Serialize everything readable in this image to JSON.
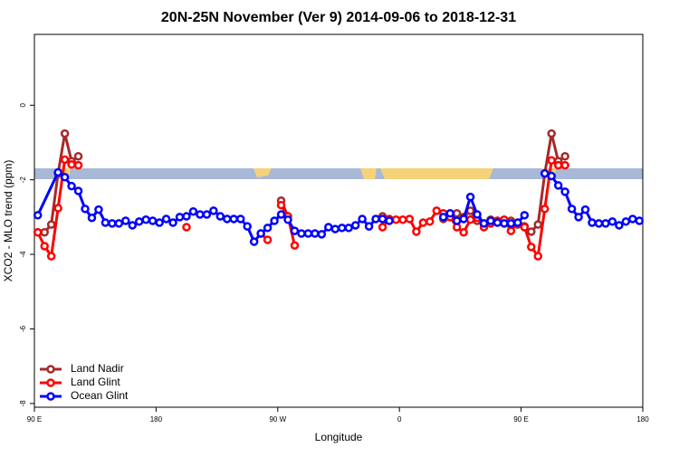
{
  "chart_data": {
    "type": "line",
    "title": "20N-25N November (Ver 9)   2014-09-06 to 2018-12-31",
    "xlabel": "Longitude",
    "ylabel": "XCO2 - MLO trend (ppm)",
    "xlim": [
      90,
      540
    ],
    "ylim": [
      -8.1,
      1.9
    ],
    "xticks": [
      {
        "value": 90,
        "label": "90 E"
      },
      180,
      {
        "value": 270,
        "label": "90 W"
      },
      {
        "value": 360,
        "label": "0"
      },
      {
        "value": 450,
        "label": "90 E"
      },
      {
        "value": 540,
        "label": "180"
      }
    ],
    "yticks": [
      -8,
      -6,
      -4,
      -2,
      0
    ],
    "legend": "bottom-left",
    "series": [
      {
        "name": "Land Nadir",
        "color": "#a52a2a",
        "x": [
          92.5,
          97.5,
          102.5,
          107.5,
          112.5,
          117.5,
          122.5,
          127.5,
          272.5,
          277.5,
          282.5,
          347.5,
          352.5,
          392.5,
          397.5,
          402.5,
          407.5,
          412.5,
          417.5,
          422.5,
          427.5,
          432.5,
          437.5,
          442.5,
          447.5,
          452.5,
          457.5,
          462.5,
          467.5,
          472.5,
          477.5,
          482.5
        ],
        "values": [
          -3.41,
          -3.41,
          -3.2,
          -1.83,
          -0.76,
          -1.5,
          -1.37,
          null,
          -2.56,
          -2.98,
          null,
          -2.98,
          null,
          -3.05,
          -3.0,
          -2.9,
          -3.0,
          -2.83,
          -3.1,
          -3.2,
          -3.07,
          -3.1,
          -3.15,
          -3.1,
          -3.2,
          -3.25,
          -3.39,
          -3.2,
          -1.83,
          -0.76,
          -1.5,
          -1.37
        ]
      },
      {
        "name": "Land Glint",
        "color": "#ff0000",
        "x": [
          92.5,
          97.5,
          102.5,
          107.5,
          112.5,
          117.5,
          122.5,
          127.5,
          202.5,
          207.5,
          257.5,
          262.5,
          267.5,
          272.5,
          277.5,
          282.5,
          287.5,
          347.5,
          352.5,
          357.5,
          362.5,
          367.5,
          372.5,
          377.5,
          382.5,
          387.5,
          392.5,
          397.5,
          402.5,
          407.5,
          412.5,
          417.5,
          422.5,
          427.5,
          432.5,
          437.5,
          442.5,
          447.5,
          452.5,
          457.5,
          462.5,
          467.5,
          472.5,
          477.5,
          482.5
        ],
        "values": [
          -3.41,
          -3.78,
          -4.05,
          -2.76,
          -1.46,
          -1.59,
          -1.61,
          null,
          -3.27,
          null,
          -3.44,
          -3.61,
          null,
          -2.68,
          -2.98,
          -3.76,
          null,
          -3.27,
          -3.05,
          -3.07,
          -3.07,
          -3.05,
          -3.39,
          -3.15,
          -3.12,
          -2.83,
          -2.9,
          -3.0,
          -3.27,
          -3.41,
          -3.07,
          -3.02,
          -3.27,
          -3.17,
          -3.1,
          -3.07,
          -3.37,
          -3.15,
          -3.27,
          -3.8,
          -4.05,
          -2.78,
          -1.48,
          -1.61,
          -1.61
        ]
      },
      {
        "name": "Ocean Glint",
        "color": "#0000ff",
        "x": [
          92.5,
          107.5,
          112.5,
          117.5,
          122.5,
          127.5,
          132.5,
          137.5,
          142.5,
          147.5,
          152.5,
          157.5,
          162.5,
          167.5,
          172.5,
          177.5,
          182.5,
          187.5,
          192.5,
          197.5,
          202.5,
          207.5,
          212.5,
          217.5,
          222.5,
          227.5,
          232.5,
          237.5,
          242.5,
          247.5,
          252.5,
          257.5,
          262.5,
          267.5,
          272.5,
          277.5,
          282.5,
          287.5,
          292.5,
          297.5,
          302.5,
          307.5,
          312.5,
          317.5,
          322.5,
          327.5,
          332.5,
          337.5,
          342.5,
          347.5,
          352.5,
          357.5,
          392.5,
          397.5,
          402.5,
          407.5,
          412.5,
          417.5,
          422.5,
          427.5,
          432.5,
          437.5,
          442.5,
          447.5,
          452.5,
          457.5,
          467.5,
          472.5,
          477.5,
          482.5,
          487.5,
          492.5,
          497.5,
          502.5,
          507.5,
          512.5,
          517.5,
          522.5,
          527.5,
          532.5,
          537.5
        ],
        "values": [
          -2.95,
          -1.8,
          -1.93,
          -2.17,
          -2.3,
          -2.78,
          -3.02,
          -2.8,
          -3.15,
          -3.17,
          -3.17,
          -3.1,
          -3.22,
          -3.12,
          -3.07,
          -3.1,
          -3.15,
          -3.05,
          -3.15,
          -3.0,
          -2.98,
          -2.85,
          -2.93,
          -2.93,
          -2.83,
          -2.98,
          -3.05,
          -3.05,
          -3.05,
          -3.25,
          -3.66,
          -3.44,
          -3.29,
          -3.1,
          -2.93,
          -3.07,
          -3.37,
          -3.44,
          -3.44,
          -3.44,
          -3.46,
          -3.27,
          -3.32,
          -3.29,
          -3.29,
          -3.22,
          -3.05,
          -3.25,
          -3.05,
          -3.05,
          -3.1,
          null,
          -3.0,
          -2.9,
          -3.1,
          -3.05,
          -2.46,
          -2.93,
          -3.17,
          -3.1,
          -3.15,
          -3.17,
          -3.17,
          -3.15,
          -2.95,
          null,
          -1.83,
          -1.9,
          -2.15,
          -2.32,
          -2.78,
          -3.0,
          -2.8,
          -3.15,
          -3.17,
          -3.17,
          -3.12,
          -3.22,
          -3.12,
          -3.05,
          -3.1
        ]
      }
    ]
  }
}
